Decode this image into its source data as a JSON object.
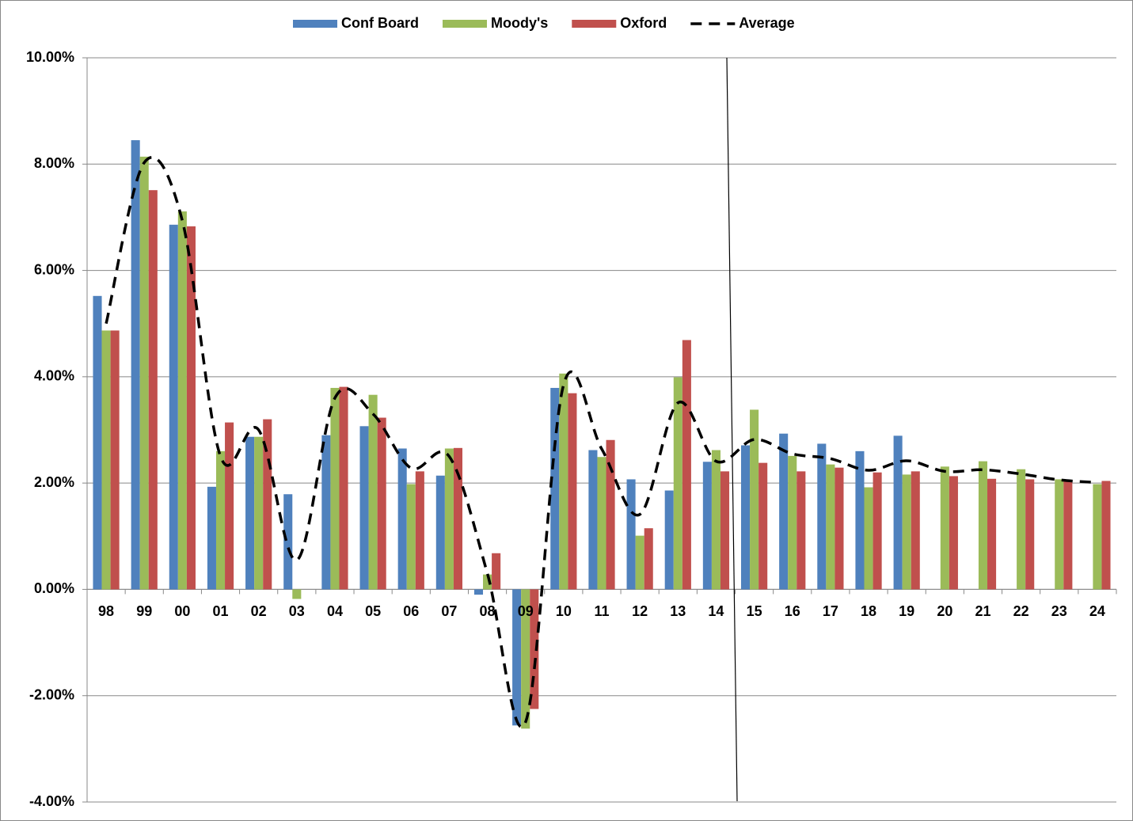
{
  "chart_data": {
    "type": "bar",
    "categories": [
      "98",
      "99",
      "00",
      "01",
      "02",
      "03",
      "04",
      "05",
      "06",
      "07",
      "08",
      "09",
      "10",
      "11",
      "12",
      "13",
      "14",
      "15",
      "16",
      "17",
      "18",
      "19",
      "20",
      "21",
      "22",
      "23",
      "24"
    ],
    "series": [
      {
        "name": "Conf Board",
        "color": "#4f81bd",
        "values": [
          5.52,
          8.45,
          6.86,
          1.93,
          2.87,
          1.79,
          2.9,
          3.07,
          2.65,
          2.14,
          -0.1,
          -2.56,
          3.79,
          2.62,
          2.07,
          1.86,
          2.4,
          2.71,
          2.93,
          2.74,
          2.6,
          2.89,
          null,
          null,
          null,
          null,
          null
        ]
      },
      {
        "name": "Moody's",
        "color": "#9bbb59",
        "values": [
          4.87,
          8.14,
          7.11,
          2.6,
          2.87,
          -0.18,
          3.79,
          3.66,
          1.98,
          2.65,
          0.28,
          -2.62,
          4.06,
          2.49,
          1.01,
          3.99,
          2.62,
          3.38,
          2.51,
          2.35,
          1.92,
          2.16,
          2.31,
          2.41,
          2.26,
          2.07,
          1.98
        ]
      },
      {
        "name": "Oxford",
        "color": "#c0504d",
        "values": [
          4.87,
          7.51,
          6.83,
          3.14,
          3.2,
          null,
          3.81,
          3.23,
          2.22,
          2.66,
          0.68,
          -2.25,
          3.69,
          2.81,
          1.15,
          4.69,
          2.22,
          2.38,
          2.22,
          2.29,
          2.2,
          2.22,
          2.13,
          2.08,
          2.07,
          2.05,
          2.04
        ]
      },
      {
        "name": "Average",
        "type": "line",
        "dashed": true,
        "color": "#000000",
        "values": [
          5.0,
          8.03,
          6.93,
          2.5,
          3.0,
          0.55,
          3.6,
          3.3,
          2.28,
          2.5,
          0.3,
          -2.5,
          3.85,
          2.64,
          1.41,
          3.51,
          2.41,
          2.82,
          2.55,
          2.46,
          2.24,
          2.42,
          2.22,
          2.25,
          2.17,
          2.06,
          2.01
        ]
      }
    ],
    "ylim": [
      -4,
      10
    ],
    "yticks": [
      {
        "value": -4,
        "label": "-4.00%"
      },
      {
        "value": -2,
        "label": "-2.00%"
      },
      {
        "value": 0,
        "label": "0.00%"
      },
      {
        "value": 2,
        "label": "2.00%"
      },
      {
        "value": 4,
        "label": "4.00%"
      },
      {
        "value": 6,
        "label": "6.00%"
      },
      {
        "value": 8,
        "label": "8.00%"
      },
      {
        "value": 10,
        "label": "10.00%"
      }
    ],
    "grid": true,
    "legend": "top"
  }
}
